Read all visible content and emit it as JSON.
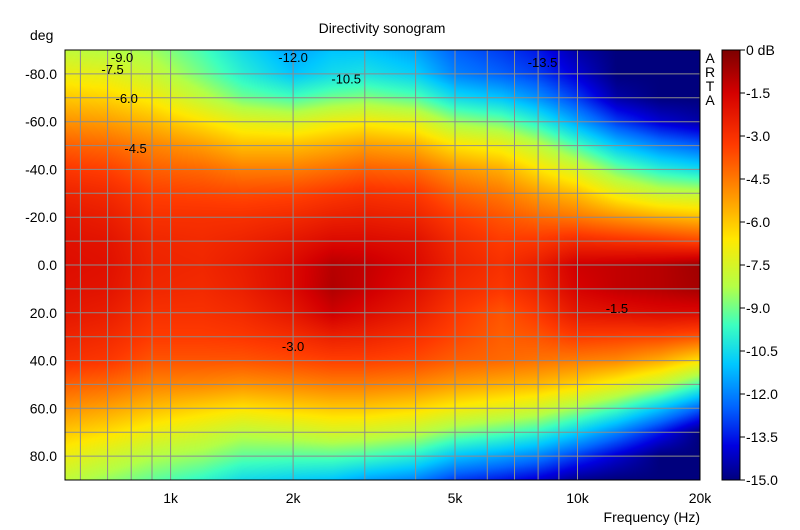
{
  "chart_data": {
    "type": "heatmap",
    "title": "Directivity sonogram",
    "xlabel": "Frequency (Hz)",
    "ylabel": "deg",
    "x_scale": "log",
    "xlim": [
      550,
      20000
    ],
    "ylim": [
      -90,
      90
    ],
    "y_inverted": true,
    "zlim": [
      -15.0,
      0.0
    ],
    "x_ticks": [
      {
        "value": 1000,
        "label": "1k"
      },
      {
        "value": 2000,
        "label": "2k"
      },
      {
        "value": 5000,
        "label": "5k"
      },
      {
        "value": 10000,
        "label": "10k"
      },
      {
        "value": 20000,
        "label": "20k"
      }
    ],
    "y_ticks": [
      {
        "value": -80,
        "label": "-80.0"
      },
      {
        "value": -60,
        "label": "-60.0"
      },
      {
        "value": -40,
        "label": "-40.0"
      },
      {
        "value": -20,
        "label": "-20.0"
      },
      {
        "value": 0,
        "label": "0.0"
      },
      {
        "value": 20,
        "label": "20.0"
      },
      {
        "value": 40,
        "label": "40.0"
      },
      {
        "value": 60,
        "label": "60.0"
      },
      {
        "value": 80,
        "label": "80.0"
      }
    ],
    "colorbar_labels": [
      "0 dB",
      "-1.5",
      "-3.0",
      "-4.5",
      "-6.0",
      "-7.5",
      "-9.0",
      "-10.5",
      "-12.0",
      "-13.5",
      "-15.0"
    ],
    "colorbar_side_text": [
      "A",
      "R",
      "T",
      "A"
    ],
    "grid": true,
    "contour_annotations": [
      {
        "label": "-9.0",
        "freq": 760,
        "deg": -87
      },
      {
        "label": "-7.5",
        "freq": 720,
        "deg": -82
      },
      {
        "label": "-6.0",
        "freq": 780,
        "deg": -70
      },
      {
        "label": "-4.5",
        "freq": 820,
        "deg": -49
      },
      {
        "label": "-12.0",
        "freq": 2000,
        "deg": -87
      },
      {
        "label": "-10.5",
        "freq": 2700,
        "deg": -78
      },
      {
        "label": "-13.5",
        "freq": 8200,
        "deg": -85
      },
      {
        "label": "-3.0",
        "freq": 2000,
        "deg": 34
      },
      {
        "label": "-1.5",
        "freq": 12500,
        "deg": 18
      }
    ],
    "frequencies": [
      550,
      700,
      900,
      1200,
      1500,
      2000,
      2500,
      3000,
      4000,
      5000,
      6500,
      8000,
      10000,
      12500,
      16000,
      20000
    ],
    "angles": [
      -90,
      -80,
      -70,
      -60,
      -50,
      -40,
      -30,
      -20,
      -10,
      0,
      10,
      20,
      30,
      40,
      50,
      60,
      70,
      80,
      90
    ],
    "values": [
      [
        -8.0,
        -8.2,
        -8.5,
        -9.5,
        -10.5,
        -11.5,
        -11.0,
        -11.0,
        -11.5,
        -12.5,
        -13.0,
        -13.5,
        -14.5,
        -15.0,
        -15.0,
        -15.0
      ],
      [
        -7.0,
        -7.2,
        -7.8,
        -9.0,
        -10.0,
        -11.0,
        -10.5,
        -10.3,
        -10.8,
        -12.0,
        -12.5,
        -13.0,
        -14.0,
        -15.0,
        -15.0,
        -15.0
      ],
      [
        -6.0,
        -6.2,
        -6.8,
        -8.0,
        -9.0,
        -9.5,
        -9.0,
        -8.8,
        -9.3,
        -10.5,
        -11.0,
        -11.8,
        -13.0,
        -14.5,
        -15.0,
        -15.0
      ],
      [
        -5.0,
        -5.2,
        -5.7,
        -6.5,
        -7.2,
        -7.5,
        -7.0,
        -6.8,
        -7.2,
        -8.5,
        -9.0,
        -10.0,
        -11.5,
        -13.0,
        -14.0,
        -14.5
      ],
      [
        -4.0,
        -4.2,
        -4.7,
        -5.2,
        -5.8,
        -5.8,
        -5.5,
        -5.2,
        -5.5,
        -6.5,
        -7.0,
        -8.0,
        -9.5,
        -11.0,
        -12.0,
        -12.5
      ],
      [
        -3.2,
        -3.4,
        -4.0,
        -4.2,
        -4.6,
        -4.6,
        -4.3,
        -4.0,
        -4.2,
        -5.0,
        -5.5,
        -6.5,
        -7.5,
        -9.0,
        -10.0,
        -10.5
      ],
      [
        -2.6,
        -2.8,
        -3.4,
        -3.5,
        -3.6,
        -3.5,
        -3.2,
        -3.0,
        -3.2,
        -4.0,
        -4.5,
        -5.2,
        -5.8,
        -7.0,
        -7.8,
        -8.0
      ],
      [
        -2.2,
        -2.4,
        -3.0,
        -3.0,
        -3.0,
        -2.8,
        -2.5,
        -2.4,
        -2.6,
        -3.3,
        -3.8,
        -4.2,
        -4.5,
        -5.0,
        -5.5,
        -5.8
      ],
      [
        -2.0,
        -2.1,
        -2.7,
        -2.8,
        -2.6,
        -2.2,
        -1.8,
        -1.8,
        -2.0,
        -2.8,
        -3.3,
        -3.2,
        -2.8,
        -3.0,
        -3.2,
        -3.5
      ],
      [
        -1.9,
        -2.0,
        -2.6,
        -2.7,
        -2.4,
        -1.8,
        -1.0,
        -1.2,
        -1.8,
        -2.6,
        -3.0,
        -2.4,
        -1.4,
        -1.2,
        -1.0,
        -0.6
      ],
      [
        -2.0,
        -2.1,
        -2.7,
        -2.8,
        -2.5,
        -1.8,
        -0.9,
        -1.3,
        -2.0,
        -2.8,
        -3.2,
        -2.6,
        -1.6,
        -1.2,
        -1.0,
        -0.7
      ],
      [
        -2.2,
        -2.4,
        -3.0,
        -3.0,
        -2.8,
        -2.2,
        -1.4,
        -1.8,
        -2.4,
        -3.2,
        -3.8,
        -3.2,
        -2.2,
        -2.0,
        -1.8,
        -1.8
      ],
      [
        -2.6,
        -2.8,
        -3.3,
        -3.3,
        -3.2,
        -2.9,
        -2.5,
        -2.6,
        -3.0,
        -3.5,
        -4.0,
        -3.8,
        -3.3,
        -3.4,
        -3.5,
        -3.8
      ],
      [
        -3.0,
        -3.2,
        -3.8,
        -3.8,
        -3.8,
        -3.6,
        -3.4,
        -3.4,
        -3.6,
        -4.0,
        -4.2,
        -4.4,
        -4.6,
        -4.8,
        -5.5,
        -6.5
      ],
      [
        -4.0,
        -4.2,
        -4.7,
        -4.8,
        -5.0,
        -4.8,
        -4.6,
        -4.6,
        -4.8,
        -5.2,
        -5.5,
        -5.7,
        -6.2,
        -7.0,
        -8.0,
        -9.5
      ],
      [
        -5.0,
        -5.3,
        -5.8,
        -6.2,
        -6.5,
        -6.2,
        -6.0,
        -6.0,
        -6.3,
        -6.8,
        -7.2,
        -7.6,
        -8.5,
        -9.5,
        -11.0,
        -12.5
      ],
      [
        -6.0,
        -6.4,
        -7.0,
        -7.5,
        -8.0,
        -7.8,
        -7.5,
        -7.6,
        -8.0,
        -8.8,
        -9.3,
        -9.8,
        -10.8,
        -12.0,
        -13.5,
        -15.0
      ],
      [
        -7.0,
        -7.6,
        -8.2,
        -8.6,
        -9.2,
        -9.3,
        -9.3,
        -9.5,
        -10.0,
        -11.0,
        -11.5,
        -12.0,
        -13.0,
        -14.0,
        -15.0,
        -15.0
      ],
      [
        -8.0,
        -8.6,
        -9.2,
        -9.8,
        -10.5,
        -10.8,
        -11.0,
        -11.5,
        -12.0,
        -13.0,
        -13.5,
        -14.0,
        -14.8,
        -15.0,
        -15.0,
        -15.0
      ]
    ]
  }
}
